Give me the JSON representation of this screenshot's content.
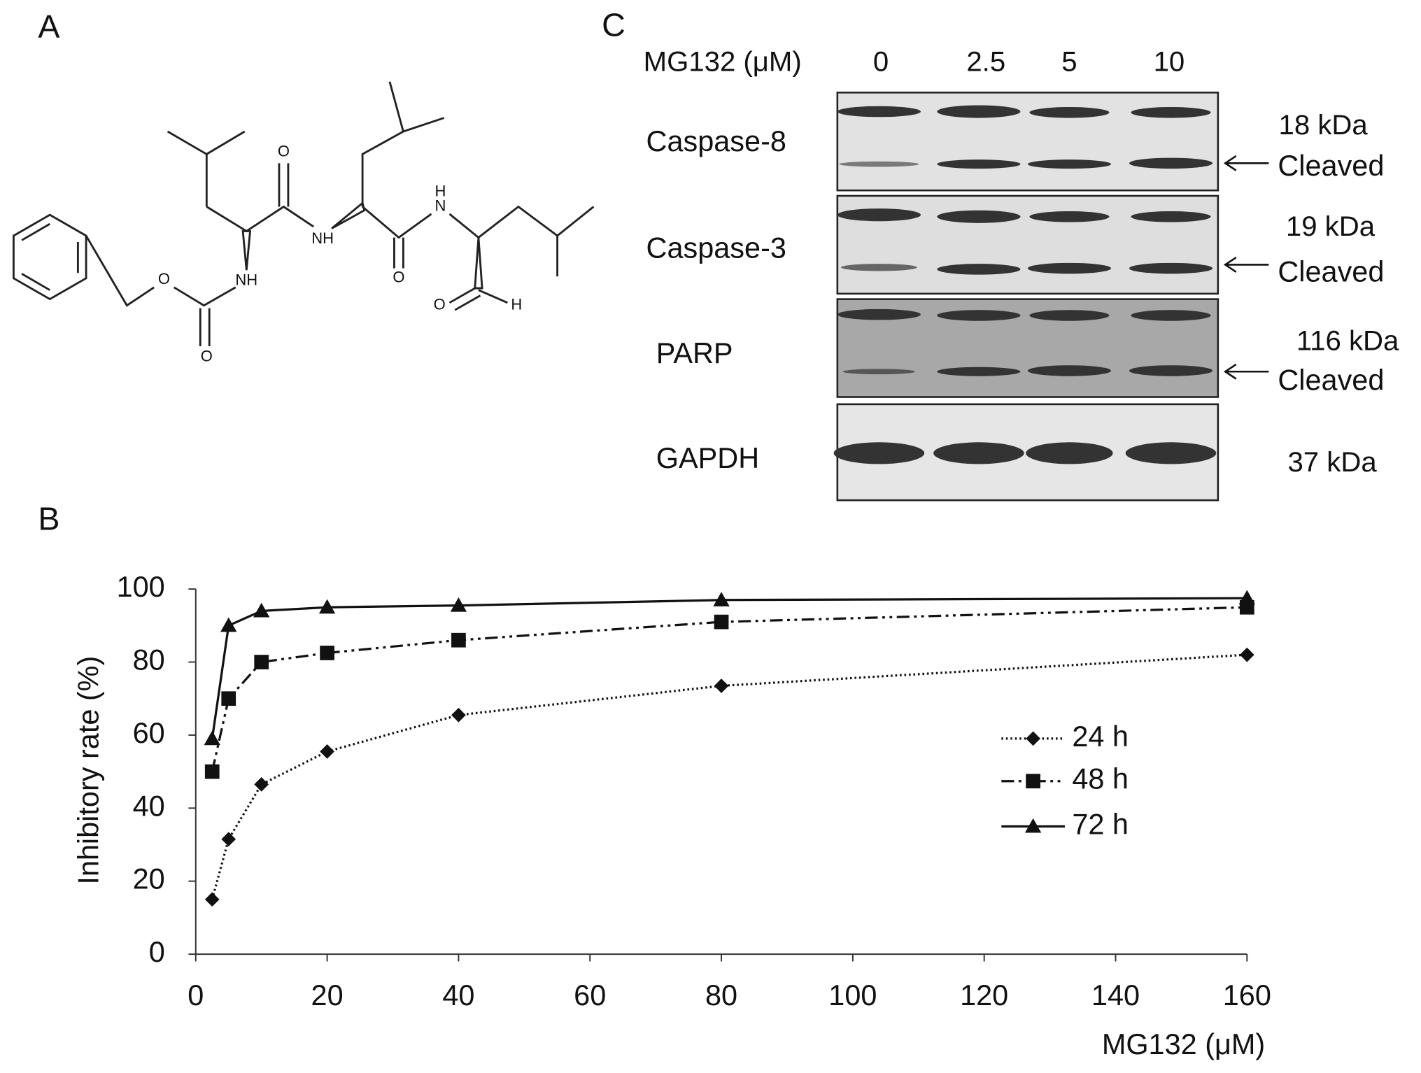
{
  "panel_labels": [
    "A",
    "B",
    "C"
  ],
  "structure": {
    "atoms": [
      "O",
      "NH",
      "O",
      "O",
      "NH",
      "O",
      "H",
      "N",
      "O",
      "H"
    ]
  },
  "blot": {
    "treatment_label": "MG132 (μM)",
    "lanes": [
      "0",
      "2.5",
      "5",
      "10"
    ],
    "proteins": [
      "Caspase-8",
      "Caspase-3",
      "PARP",
      "GAPDH"
    ],
    "sizes": [
      "18 kDa",
      "19 kDa",
      "116 kDa",
      "37 kDa"
    ],
    "cleaved": [
      "Cleaved",
      "Cleaved",
      "Cleaved"
    ]
  },
  "chart_data": {
    "type": "line",
    "xlabel": "MG132 (μM)",
    "ylabel": "Inhibitory rate (%)",
    "x": [
      2.5,
      5,
      10,
      20,
      40,
      80,
      160
    ],
    "xlim": [
      0,
      160
    ],
    "xticks": [
      0,
      20,
      40,
      60,
      80,
      100,
      120,
      140,
      160
    ],
    "ylim": [
      0,
      100
    ],
    "yticks": [
      0,
      20,
      40,
      60,
      80,
      100
    ],
    "series": [
      {
        "name": "24 h",
        "color": "#111111",
        "marker": "diamond",
        "dash": "dotted",
        "values": [
          15,
          31.5,
          46.5,
          55.5,
          65.5,
          73.5,
          82
        ]
      },
      {
        "name": "48 h",
        "color": "#111111",
        "marker": "square",
        "dash": "dash-dot-dot",
        "values": [
          50,
          70,
          80,
          82.5,
          86,
          91,
          95
        ]
      },
      {
        "name": "72 h",
        "color": "#111111",
        "marker": "triangle",
        "dash": "solid",
        "values": [
          59,
          90,
          94,
          95,
          95.5,
          97,
          97.5
        ]
      }
    ]
  }
}
